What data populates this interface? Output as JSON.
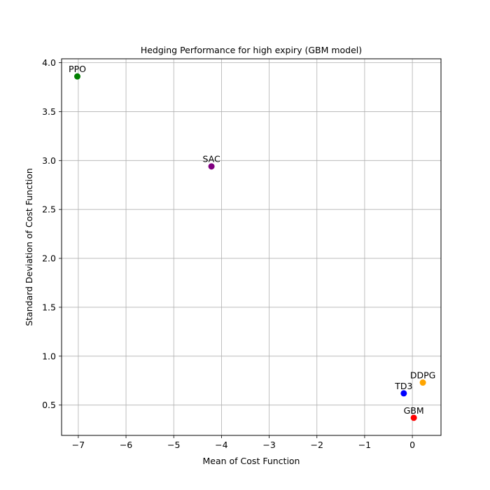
{
  "chart_data": {
    "type": "scatter",
    "title": "Hedging Performance for high expiry (GBM model)",
    "xlabel": "Mean of Cost Function",
    "ylabel": "Standard Deviation of Cost Function",
    "xlim": [
      -7.35,
      0.6
    ],
    "ylim": [
      0.19,
      4.04
    ],
    "xticks": [
      -7,
      -6,
      -5,
      -4,
      -3,
      -2,
      -1,
      0
    ],
    "xtick_labels": [
      "−7",
      "−6",
      "−5",
      "−4",
      "−3",
      "−2",
      "−1",
      "0"
    ],
    "yticks": [
      0.5,
      1.0,
      1.5,
      2.0,
      2.5,
      3.0,
      3.5,
      4.0
    ],
    "ytick_labels": [
      "0.5",
      "1.0",
      "1.5",
      "2.0",
      "2.5",
      "3.0",
      "3.5",
      "4.0"
    ],
    "grid": true,
    "points": [
      {
        "label": "PPO",
        "x": -7.02,
        "y": 3.86,
        "color": "#008000"
      },
      {
        "label": "SAC",
        "x": -4.21,
        "y": 2.94,
        "color": "#800080"
      },
      {
        "label": "DDPG",
        "x": 0.22,
        "y": 0.73,
        "color": "#ffa500"
      },
      {
        "label": "TD3",
        "x": -0.18,
        "y": 0.62,
        "color": "#0000ff"
      },
      {
        "label": "GBM",
        "x": 0.03,
        "y": 0.37,
        "color": "#ff0000"
      }
    ]
  }
}
